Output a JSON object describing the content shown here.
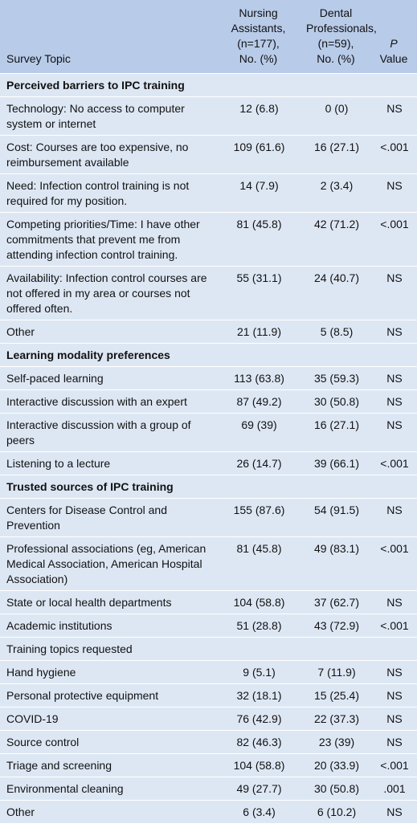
{
  "table": {
    "header": [
      [
        "Survey Topic"
      ],
      [
        "Nursing",
        "Assistants,",
        "(n=177),",
        "No. (%)"
      ],
      [
        "Dental",
        "Professionals,",
        "(n=59),",
        "No. (%)"
      ],
      [
        "P",
        "Value"
      ]
    ],
    "rows": [
      {
        "section": "Perceived barriers to IPC training"
      },
      {
        "cells": [
          "Technology: No access to computer system or internet",
          "12 (6.8)",
          "0 (0)",
          "NS"
        ]
      },
      {
        "cells": [
          "Cost: Courses are too expensive, no reimbursement available",
          "109 (61.6)",
          "16 (27.1)",
          "<.001"
        ]
      },
      {
        "cells": [
          "Need: Infection control training is not required for my position.",
          "14 (7.9)",
          "2 (3.4)",
          "NS"
        ]
      },
      {
        "cells": [
          "Competing priorities/Time: I have other commitments that prevent me from attending infection control training.",
          "81 (45.8)",
          "42 (71.2)",
          "<.001"
        ]
      },
      {
        "cells": [
          "Availability: Infection control courses are not offered in my area or courses not offered often.",
          "55 (31.1)",
          "24 (40.7)",
          "NS"
        ]
      },
      {
        "cells": [
          "Other",
          "21 (11.9)",
          "5 (8.5)",
          "NS"
        ]
      },
      {
        "section": "Learning modality preferences"
      },
      {
        "cells": [
          "Self-paced learning",
          "113 (63.8)",
          "35 (59.3)",
          "NS"
        ]
      },
      {
        "cells": [
          "Interactive discussion with an expert",
          "87 (49.2)",
          "30 (50.8)",
          "NS"
        ]
      },
      {
        "cells": [
          "Interactive discussion with a group of peers",
          "69 (39)",
          "16 (27.1)",
          "NS"
        ]
      },
      {
        "cells": [
          "Listening to a lecture",
          "26 (14.7)",
          "39 (66.1)",
          "<.001"
        ]
      },
      {
        "section": "Trusted sources of IPC training"
      },
      {
        "cells": [
          "Centers for Disease Control and Prevention",
          "155 (87.6)",
          "54 (91.5)",
          "NS"
        ]
      },
      {
        "cells": [
          "Professional associations (eg, American Medical Association, American Hospital Association)",
          "81 (45.8)",
          "49 (83.1)",
          "<.001"
        ]
      },
      {
        "cells": [
          "State or local health departments",
          "104 (58.8)",
          "37 (62.7)",
          "NS"
        ]
      },
      {
        "cells": [
          "Academic institutions",
          "51 (28.8)",
          "43 (72.9)",
          "<.001"
        ]
      },
      {
        "cells": [
          "Training topics requested"
        ]
      },
      {
        "cells": [
          "Hand hygiene",
          "9 (5.1)",
          "7 (11.9)",
          "NS"
        ]
      },
      {
        "cells": [
          "Personal protective equipment",
          "32 (18.1)",
          "15 (25.4)",
          "NS"
        ]
      },
      {
        "cells": [
          "COVID-19",
          "76 (42.9)",
          "22 (37.3)",
          "NS"
        ]
      },
      {
        "cells": [
          "Source control",
          "82 (46.3)",
          "23 (39)",
          "NS"
        ]
      },
      {
        "cells": [
          "Triage and screening",
          "104 (58.8)",
          "20 (33.9)",
          "<.001"
        ]
      },
      {
        "cells": [
          "Environmental cleaning",
          "49 (27.7)",
          "30 (50.8)",
          ".001"
        ]
      },
      {
        "cells": [
          "Other",
          "6 (3.4)",
          "6 (10.2)",
          "NS"
        ]
      }
    ]
  }
}
